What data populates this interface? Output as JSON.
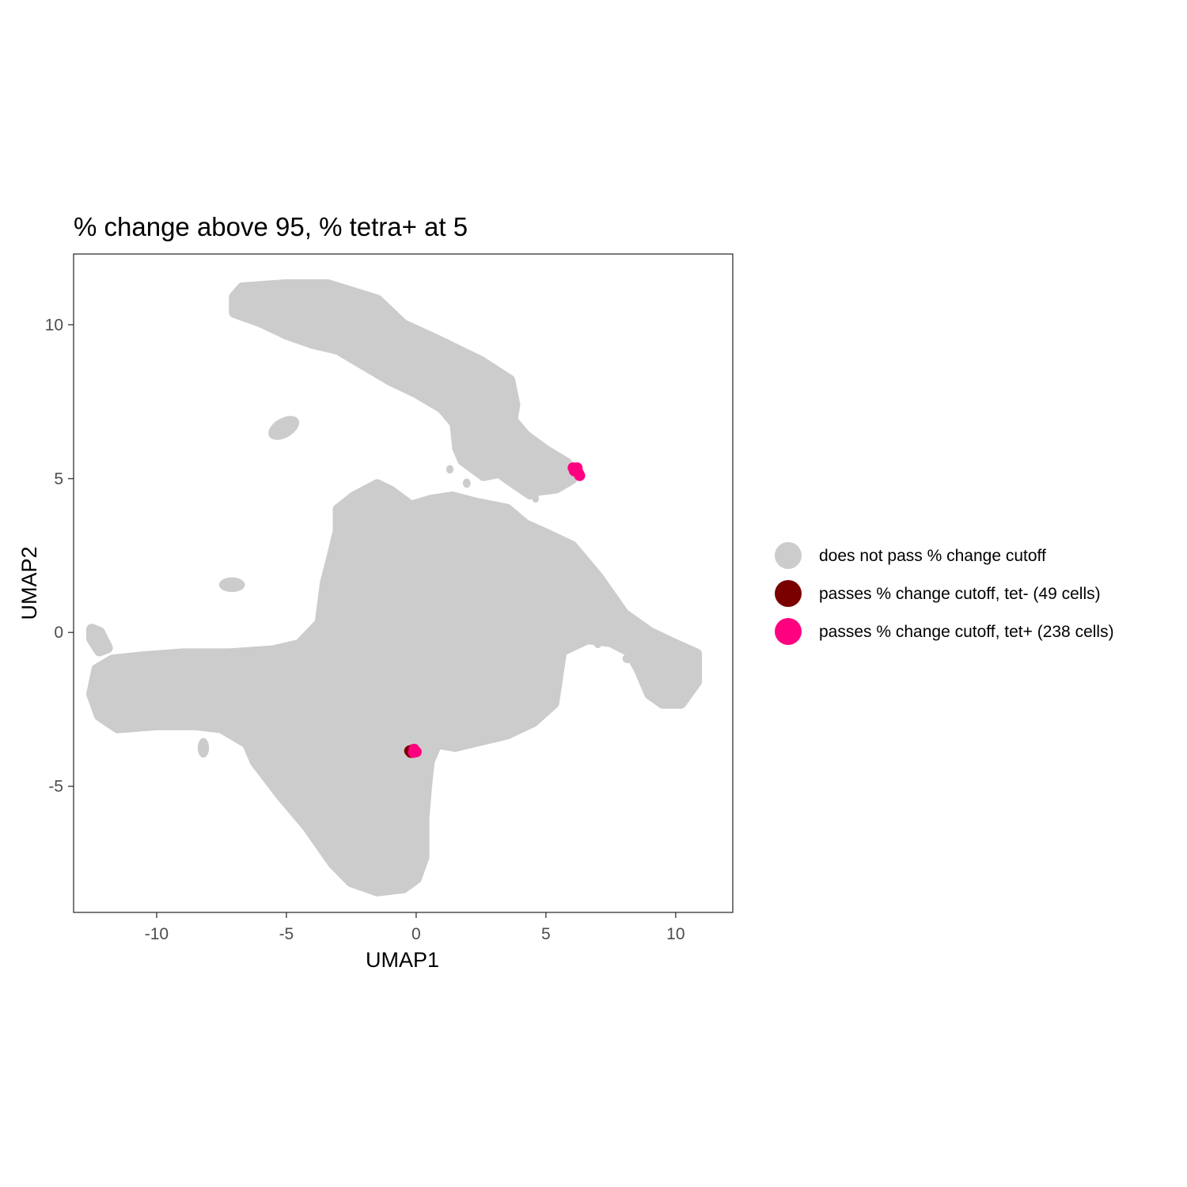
{
  "chart_data": {
    "type": "scatter",
    "title": "% change above 95, % tetra+ at 5",
    "xlabel": "UMAP1",
    "ylabel": "UMAP2",
    "xlim": [
      -13.2,
      12.2
    ],
    "ylim": [
      -9.1,
      12.3
    ],
    "x_ticks": [
      -10,
      -5,
      0,
      5,
      10
    ],
    "x_tick_labels": [
      "-10",
      "-5",
      "0",
      "5",
      "10"
    ],
    "y_ticks": [
      -5,
      0,
      5,
      10
    ],
    "y_tick_labels": [
      "-5",
      "0",
      "5",
      "10"
    ],
    "grid": false,
    "legend_position": "right",
    "colors": {
      "background_cells": "#cccccc",
      "tet_minus": "#7a0000",
      "tet_plus": "#ff0080",
      "axis": "#333333"
    },
    "series": [
      {
        "name": "does not pass % change cutoff",
        "color": "#cccccc",
        "regions": [
          {
            "shape": "polygon",
            "points": [
              [
                -7.0,
                10.9
              ],
              [
                -6.7,
                11.2
              ],
              [
                -5.0,
                11.3
              ],
              [
                -3.4,
                11.3
              ],
              [
                -1.5,
                10.8
              ],
              [
                -0.5,
                10.0
              ],
              [
                0.8,
                9.5
              ],
              [
                2.5,
                8.8
              ],
              [
                3.6,
                8.2
              ],
              [
                3.8,
                7.4
              ],
              [
                3.7,
                6.9
              ],
              [
                4.2,
                6.4
              ],
              [
                5.0,
                5.9
              ],
              [
                5.8,
                5.5
              ],
              [
                6.0,
                5.0
              ],
              [
                5.4,
                4.7
              ],
              [
                4.5,
                4.6
              ],
              [
                4.4,
                4.5
              ],
              [
                3.7,
                4.9
              ],
              [
                3.2,
                5.2
              ],
              [
                2.6,
                5.1
              ],
              [
                1.8,
                5.6
              ],
              [
                1.6,
                6.0
              ],
              [
                1.5,
                6.8
              ],
              [
                1.0,
                7.3
              ],
              [
                0.0,
                7.8
              ],
              [
                -1.0,
                8.2
              ],
              [
                -2.0,
                8.7
              ],
              [
                -3.0,
                9.2
              ],
              [
                -4.0,
                9.4
              ],
              [
                -5.0,
                9.7
              ],
              [
                -6.0,
                10.1
              ],
              [
                -7.0,
                10.4
              ]
            ]
          },
          {
            "shape": "polygon",
            "points": [
              [
                -3.0,
                4.0
              ],
              [
                -2.4,
                4.4
              ],
              [
                -1.5,
                4.8
              ],
              [
                -1.0,
                4.6
              ],
              [
                -0.2,
                4.1
              ],
              [
                0.6,
                4.3
              ],
              [
                1.4,
                4.4
              ],
              [
                2.3,
                4.2
              ],
              [
                3.5,
                4.0
              ],
              [
                4.2,
                3.5
              ],
              [
                5.0,
                3.2
              ],
              [
                6.0,
                2.8
              ],
              [
                7.0,
                1.8
              ],
              [
                8.0,
                0.6
              ],
              [
                9.0,
                0.0
              ],
              [
                10.0,
                -0.4
              ],
              [
                10.8,
                -0.7
              ],
              [
                10.8,
                -1.6
              ],
              [
                10.2,
                -2.3
              ],
              [
                9.5,
                -2.3
              ],
              [
                9.0,
                -2.0
              ],
              [
                8.6,
                -1.2
              ],
              [
                8.2,
                -0.6
              ],
              [
                7.5,
                -0.3
              ],
              [
                6.6,
                -0.2
              ],
              [
                5.6,
                -0.6
              ],
              [
                5.3,
                -2.3
              ],
              [
                4.5,
                -2.9
              ],
              [
                3.5,
                -3.3
              ],
              [
                2.5,
                -3.5
              ],
              [
                1.5,
                -3.7
              ],
              [
                0.8,
                -3.6
              ],
              [
                0.5,
                -4.2
              ],
              [
                0.4,
                -5.0
              ],
              [
                0.3,
                -6.0
              ],
              [
                0.3,
                -7.3
              ],
              [
                0.0,
                -8.0
              ],
              [
                -0.5,
                -8.3
              ],
              [
                -1.5,
                -8.4
              ],
              [
                -2.5,
                -8.1
              ],
              [
                -3.2,
                -7.5
              ],
              [
                -4.2,
                -6.3
              ],
              [
                -5.2,
                -5.3
              ],
              [
                -6.2,
                -4.2
              ],
              [
                -6.5,
                -3.6
              ],
              [
                -7.5,
                -3.1
              ],
              [
                -8.5,
                -3.0
              ],
              [
                -10.0,
                -3.0
              ],
              [
                -11.5,
                -3.1
              ],
              [
                -12.2,
                -2.7
              ],
              [
                -12.5,
                -2.0
              ],
              [
                -12.3,
                -1.2
              ],
              [
                -11.7,
                -0.9
              ],
              [
                -10.6,
                -0.8
              ],
              [
                -9.0,
                -0.7
              ],
              [
                -7.2,
                -0.7
              ],
              [
                -5.5,
                -0.6
              ],
              [
                -4.5,
                -0.4
              ],
              [
                -3.7,
                0.3
              ],
              [
                -3.5,
                1.6
              ],
              [
                -3.2,
                2.6
              ],
              [
                -3.0,
                3.3
              ]
            ]
          },
          {
            "shape": "polygon",
            "points": [
              [
                -12.5,
                0.1
              ],
              [
                -12.2,
                0.0
              ],
              [
                -11.9,
                -0.5
              ],
              [
                -12.2,
                -0.6
              ],
              [
                -12.5,
                -0.2
              ]
            ]
          },
          {
            "shape": "ellipse",
            "cx": -5.1,
            "cy": 6.65,
            "rx": 0.65,
            "ry": 0.32,
            "rotation": -30
          },
          {
            "shape": "ellipse",
            "cx": -7.1,
            "cy": 1.55,
            "rx": 0.5,
            "ry": 0.24,
            "rotation": 0
          },
          {
            "shape": "ellipse",
            "cx": -8.2,
            "cy": -3.75,
            "rx": 0.22,
            "ry": 0.32,
            "rotation": 0
          },
          {
            "shape": "ellipse",
            "cx": 7.0,
            "cy": -0.35,
            "rx": 0.16,
            "ry": 0.16,
            "rotation": 0
          },
          {
            "shape": "ellipse",
            "cx": 8.15,
            "cy": -0.85,
            "rx": 0.2,
            "ry": 0.15,
            "rotation": 0
          },
          {
            "shape": "ellipse",
            "cx": 1.95,
            "cy": 4.85,
            "rx": 0.15,
            "ry": 0.15,
            "rotation": 0
          },
          {
            "shape": "ellipse",
            "cx": 1.3,
            "cy": 5.3,
            "rx": 0.14,
            "ry": 0.14,
            "rotation": 0
          },
          {
            "shape": "ellipse",
            "cx": 4.6,
            "cy": 4.35,
            "rx": 0.13,
            "ry": 0.13,
            "rotation": 0
          }
        ]
      },
      {
        "name": "passes % change cutoff, tet- (49 cells)",
        "color": "#7a0000",
        "points": [
          [
            -0.25,
            -3.85
          ],
          [
            -0.2,
            -3.9
          ],
          [
            -0.15,
            -3.82
          ]
        ]
      },
      {
        "name": "passes % change cutoff, tet+ (238 cells)",
        "color": "#ff0080",
        "points": [
          [
            6.05,
            5.35
          ],
          [
            6.12,
            5.32
          ],
          [
            6.18,
            5.28
          ],
          [
            6.22,
            5.22
          ],
          [
            6.27,
            5.15
          ],
          [
            6.3,
            5.1
          ],
          [
            6.1,
            5.25
          ],
          [
            6.2,
            5.35
          ],
          [
            -0.05,
            -3.85
          ],
          [
            -0.1,
            -3.9
          ],
          [
            0.0,
            -3.88
          ],
          [
            -0.08,
            -3.8
          ]
        ]
      }
    ]
  }
}
